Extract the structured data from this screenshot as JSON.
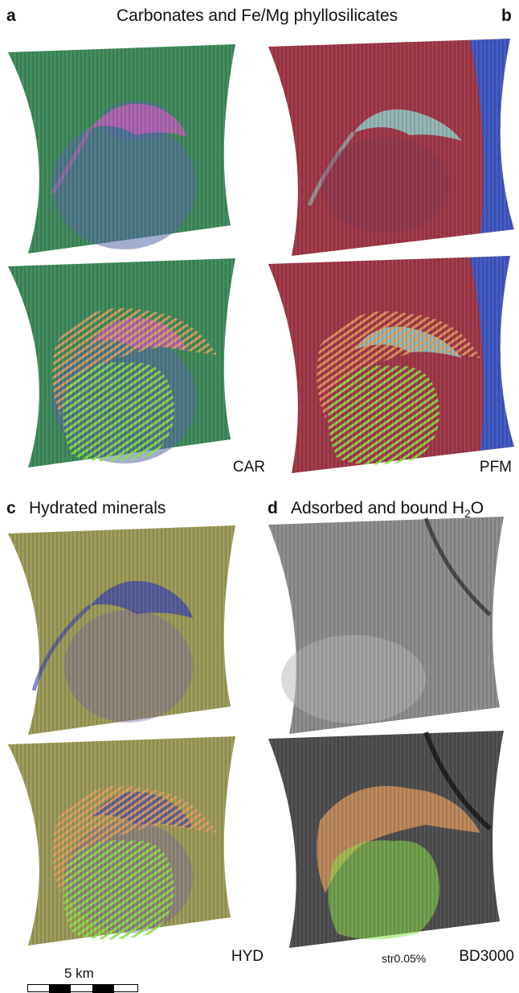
{
  "panels": {
    "a": {
      "letter": "a"
    },
    "b": {
      "letter": "b"
    },
    "c": {
      "letter": "c",
      "title": "Hydrated minerals",
      "label": "HYD"
    },
    "d": {
      "letter": "d",
      "title_pre": "Adsorbed and bound H",
      "title_sub": "2",
      "title_post": "O",
      "label": "BD3000",
      "stretch": "str0.05%"
    }
  },
  "top_title": "Carbonates and Fe/Mg phyllosilicates",
  "label_a": "CAR",
  "label_b": "PFM",
  "scalebar": {
    "text": "5 km"
  },
  "colors": {
    "car_green": "#3f8a5c",
    "car_purple": "#5a6aa8",
    "car_pink": "#c060b8",
    "pfm_red": "#a03848",
    "pfm_blue": "#2f5ed8",
    "pfm_cyan": "#8fd4d0",
    "hyd_olive": "#9c9a58",
    "hyd_purple": "#7a62a8",
    "hyd_blue": "#3a40b0",
    "bd_gray": "#8c8c8c",
    "overlay_orange": "#e8a060",
    "overlay_green": "#8ee04a"
  }
}
